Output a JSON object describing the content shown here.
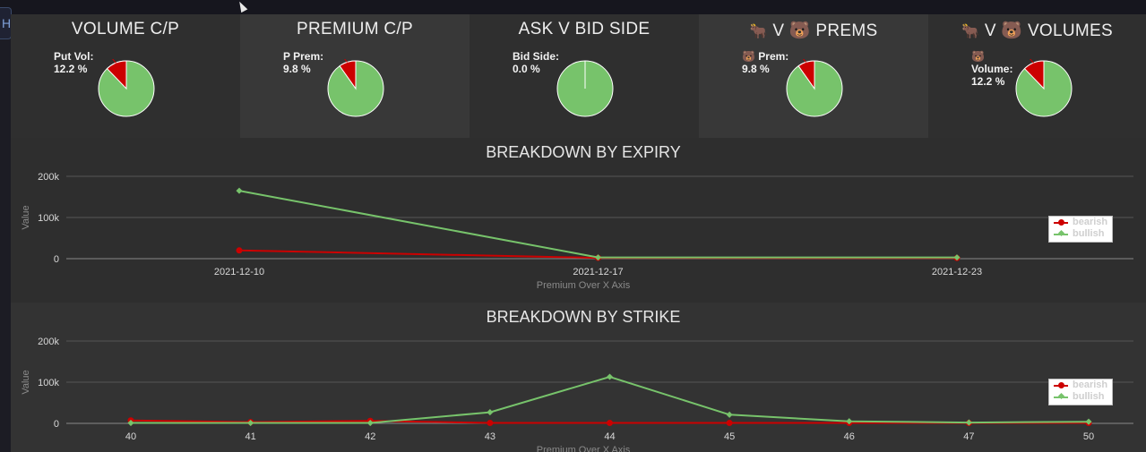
{
  "side_tab": "H",
  "panels": [
    {
      "title": "VOLUME C/P",
      "label": "Put Vol:\n12.2 %",
      "fraction": 0.122
    },
    {
      "title": "PREMIUM C/P",
      "label": "P Prem:\n9.8 %",
      "fraction": 0.098
    },
    {
      "title": "ASK V BID SIDE",
      "label": "Bid Side:\n0.0 %",
      "fraction": 0.0
    },
    {
      "title": "V 🐻 PREMS",
      "title_icon": "🐂",
      "label": "🐻 Prem:\n9.8 %",
      "fraction": 0.098
    },
    {
      "title": "V 🐻 VOLUMES",
      "title_icon": "🐂",
      "label": "🐻\nVolume:\n12.2 %",
      "fraction": 0.122
    }
  ],
  "colors": {
    "bearish": "#cc0000",
    "bullish": "#77c36b",
    "panel_dark": "#2f2f2f",
    "panel_light": "#383838",
    "chart_bg": "#2e2e2e"
  },
  "chart_data": [
    {
      "type": "line",
      "title": "BREAKDOWN BY EXPIRY",
      "xlabel": "Premium Over X Axis",
      "ylabel": "Value",
      "categories": [
        "2021-12-10",
        "2021-12-17",
        "2021-12-23"
      ],
      "yticks": [
        "0",
        "100k",
        "200k"
      ],
      "ylim": [
        0,
        200000
      ],
      "grid": true,
      "legend": "right",
      "series": [
        {
          "name": "bearish",
          "values": [
            20000,
            2000,
            1500
          ]
        },
        {
          "name": "bullish",
          "values": [
            165000,
            3000,
            3000
          ]
        }
      ]
    },
    {
      "type": "line",
      "title": "BREAKDOWN BY STRIKE",
      "xlabel": "Premium Over X Axis",
      "ylabel": "Value",
      "categories": [
        "40",
        "41",
        "42",
        "43",
        "44",
        "45",
        "46",
        "47",
        "50"
      ],
      "yticks": [
        "0",
        "100k",
        "200k"
      ],
      "ylim": [
        0,
        200000
      ],
      "grid": true,
      "legend": "right",
      "series": [
        {
          "name": "bearish",
          "values": [
            7000,
            3000,
            6000,
            1000,
            1000,
            1000,
            1000,
            1000,
            1000
          ]
        },
        {
          "name": "bullish",
          "values": [
            1000,
            1000,
            1000,
            27000,
            113000,
            21000,
            5000,
            2000,
            4000
          ]
        }
      ]
    }
  ]
}
